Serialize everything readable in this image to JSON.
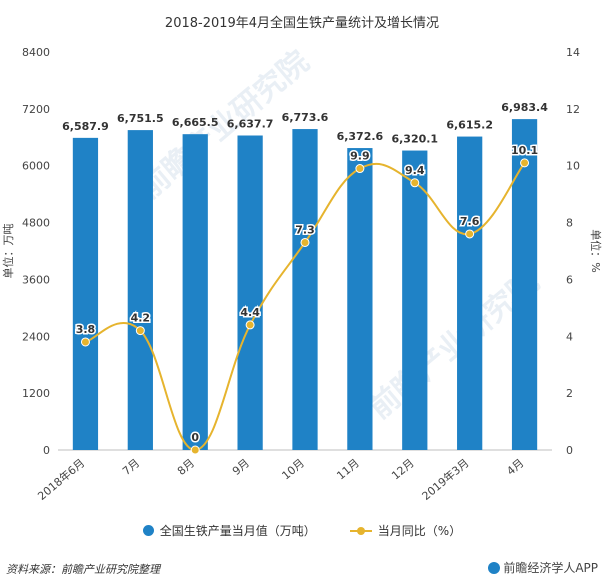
{
  "title": "2018-2019年4月全国生铁产量统计及增长情况",
  "chart_data": {
    "type": "bar",
    "categories": [
      "2018年6月",
      "7月",
      "8月",
      "9月",
      "10月",
      "11月",
      "12月",
      "2019年3月",
      "4月"
    ],
    "series": [
      {
        "name": "全国生铁产量当月值（万吨）",
        "type": "bar",
        "axis": "left",
        "values": [
          6587.9,
          6751.5,
          6665.5,
          6637.7,
          6773.6,
          6372.6,
          6320.1,
          6615.2,
          6983.4
        ],
        "labels": [
          "6,587.9",
          "6,751.5",
          "6,665.5",
          "6,637.7",
          "6,773.6",
          "6,372.6",
          "6,320.1",
          "6,615.2",
          "6,983.4"
        ],
        "color": "#1f82c6"
      },
      {
        "name": "当月同比（%）",
        "type": "line",
        "axis": "right",
        "values": [
          3.8,
          4.2,
          0,
          4.4,
          7.3,
          9.9,
          9.4,
          7.6,
          10.1
        ],
        "labels": [
          "3.8",
          "4.2",
          "0",
          "4.4",
          "7.3",
          "9.9",
          "9.4",
          "7.6",
          "10.1"
        ],
        "color": "#e6b42e"
      }
    ],
    "left_axis": {
      "label": "单位：万吨",
      "range": [
        0,
        8400
      ],
      "ticks": [
        0,
        1200,
        2400,
        3600,
        4800,
        6000,
        7200,
        8400
      ]
    },
    "right_axis": {
      "label": "单位：%",
      "range": [
        0,
        14
      ],
      "ticks": [
        0,
        2,
        4,
        6,
        8,
        10,
        12,
        14
      ]
    },
    "grid": false,
    "legend_position": "bottom"
  },
  "legend": {
    "bar_label": "全国生铁产量当月值（万吨）",
    "line_label": "当月同比（%）"
  },
  "footer": {
    "source": "资料来源：前瞻产业研究院整理",
    "brand": "前瞻经济学人APP"
  }
}
